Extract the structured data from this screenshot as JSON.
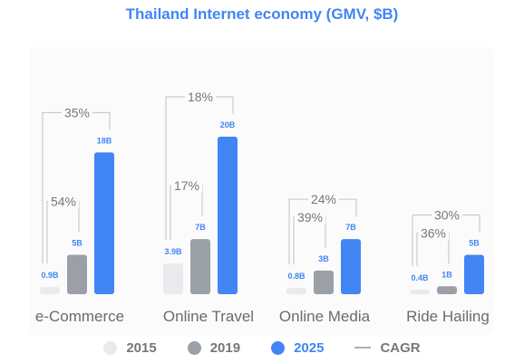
{
  "chart_data": {
    "type": "bar",
    "title": "Thailand Internet economy (GMV, $B)",
    "categories": [
      "e-Commerce",
      "Online Travel",
      "Online Media",
      "Ride Hailing"
    ],
    "series": [
      {
        "name": "2015",
        "color": "#e8eaed",
        "values": [
          0.9,
          3.9,
          0.8,
          0.4
        ],
        "labels": [
          "0.9B",
          "3.9B",
          "0.8B",
          "0.4B"
        ]
      },
      {
        "name": "2019",
        "color": "#9aa0a6",
        "values": [
          5,
          7,
          3,
          1
        ],
        "labels": [
          "5B",
          "7B",
          "3B",
          "1B"
        ]
      },
      {
        "name": "2025",
        "color": "#4285f4",
        "values": [
          18,
          20,
          7,
          5
        ],
        "labels": [
          "18B",
          "20B",
          "7B",
          "5B"
        ]
      }
    ],
    "cagr": [
      {
        "label": "CAGR",
        "short": [
          "54%",
          "17%",
          "39%",
          "36%"
        ],
        "long": [
          "35%",
          "18%",
          "24%",
          "30%"
        ]
      }
    ],
    "legend_placement": "bottom",
    "grid": false
  },
  "legend": {
    "items": [
      {
        "label": "2015",
        "color": "#e8eaed"
      },
      {
        "label": "2019",
        "color": "#9aa0a6"
      },
      {
        "label": "2025",
        "color": "#4285f4"
      }
    ],
    "cagr_label": "CAGR"
  }
}
